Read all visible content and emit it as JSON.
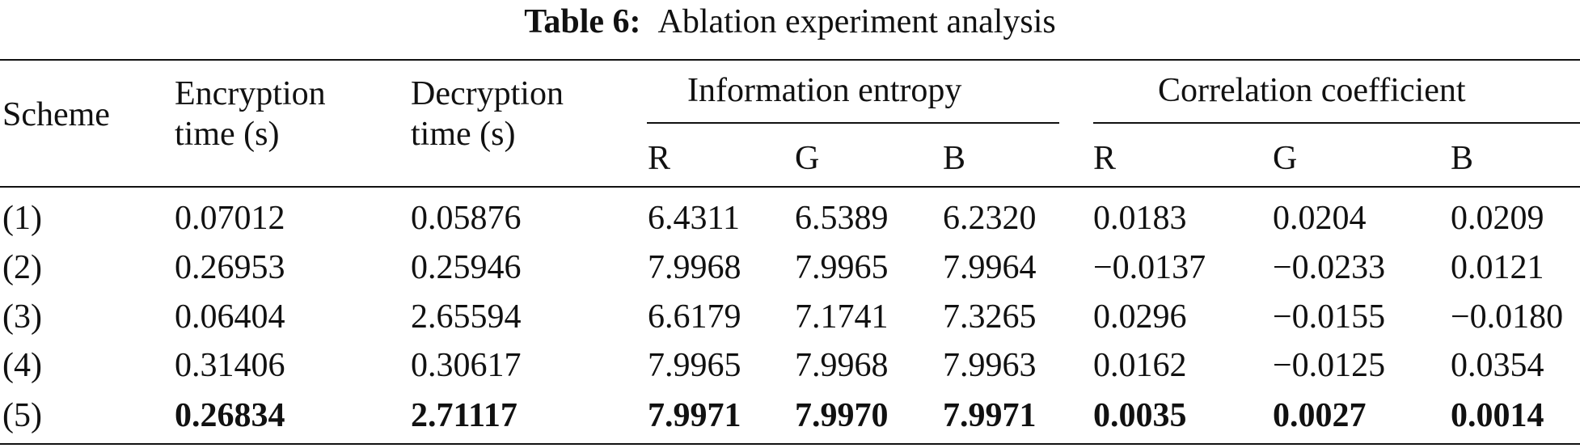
{
  "caption": {
    "label": "Table 6:",
    "text": "Ablation experiment analysis"
  },
  "header": {
    "scheme": "Scheme",
    "enc_line1": "Encryption",
    "enc_line2": "time (s)",
    "dec_line1": "Decryption",
    "dec_line2": "time (s)",
    "entropy_group": "Information entropy",
    "corr_group": "Correlation coefficient",
    "entropy_cols": [
      "R",
      "G",
      "B"
    ],
    "corr_cols": [
      "R",
      "G",
      "B"
    ]
  },
  "rows": [
    {
      "scheme": "(1)",
      "enc": "0.07012",
      "dec": "0.05876",
      "ent_r": "6.4311",
      "ent_g": "6.5389",
      "ent_b": "6.2320",
      "cor_r": "0.0183",
      "cor_g": "0.0204",
      "cor_b": "0.0209",
      "bold": false
    },
    {
      "scheme": "(2)",
      "enc": "0.26953",
      "dec": "0.25946",
      "ent_r": "7.9968",
      "ent_g": "7.9965",
      "ent_b": "7.9964",
      "cor_r": "−0.0137",
      "cor_g": "−0.0233",
      "cor_b": "0.0121",
      "bold": false
    },
    {
      "scheme": "(3)",
      "enc": "0.06404",
      "dec": "2.65594",
      "ent_r": "6.6179",
      "ent_g": "7.1741",
      "ent_b": "7.3265",
      "cor_r": "0.0296",
      "cor_g": "−0.0155",
      "cor_b": "−0.0180",
      "bold": false
    },
    {
      "scheme": "(4)",
      "enc": "0.31406",
      "dec": "0.30617",
      "ent_r": "7.9965",
      "ent_g": "7.9968",
      "ent_b": "7.9963",
      "cor_r": "0.0162",
      "cor_g": "−0.0125",
      "cor_b": "0.0354",
      "bold": false
    },
    {
      "scheme": "(5)",
      "enc": "0.26834",
      "dec": "2.71117",
      "ent_r": "7.9971",
      "ent_g": "7.9970",
      "ent_b": "7.9971",
      "cor_r": "0.0035",
      "cor_g": "0.0027",
      "cor_b": "0.0014",
      "bold": true
    }
  ]
}
